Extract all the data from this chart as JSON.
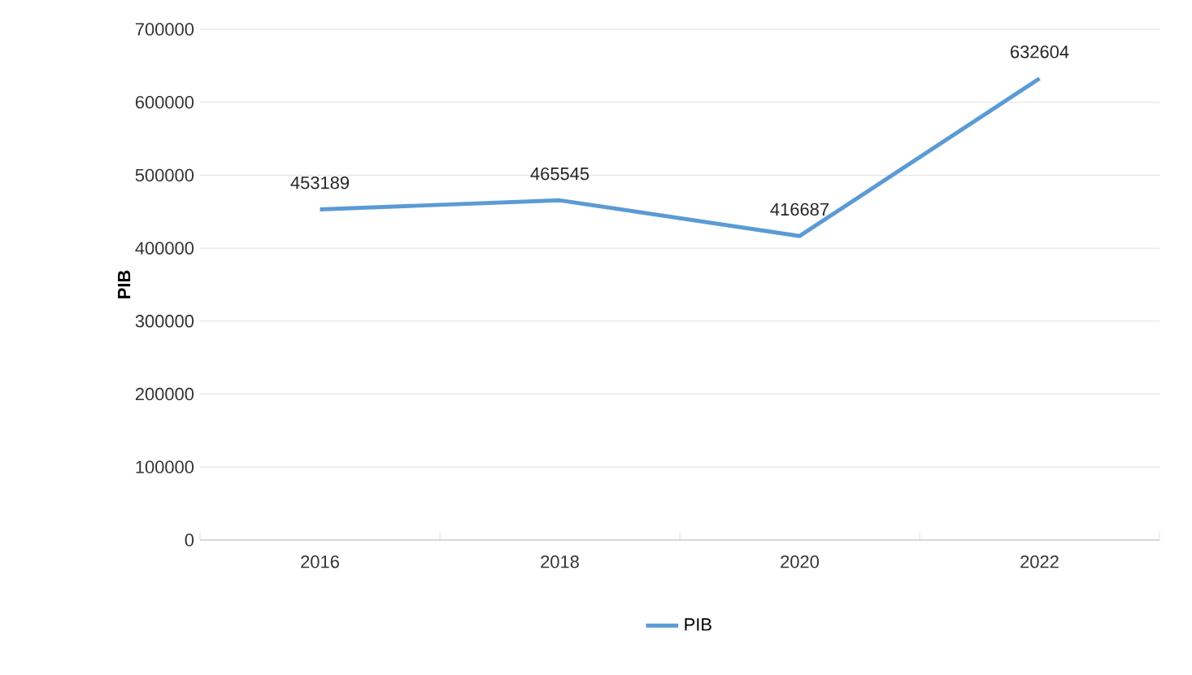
{
  "chart_data": {
    "type": "line",
    "categories": [
      "2016",
      "2018",
      "2020",
      "2022"
    ],
    "series": [
      {
        "name": "PIB",
        "color": "#5b9bd5",
        "values": [
          453189,
          465545,
          416687,
          632604
        ]
      }
    ],
    "ylabel": "PIB",
    "ylim": [
      0,
      700000
    ],
    "yticks": [
      0,
      100000,
      200000,
      300000,
      400000,
      500000,
      600000,
      700000
    ],
    "grid": "y",
    "legend": "bottom",
    "data_labels": true,
    "marker": "none"
  }
}
